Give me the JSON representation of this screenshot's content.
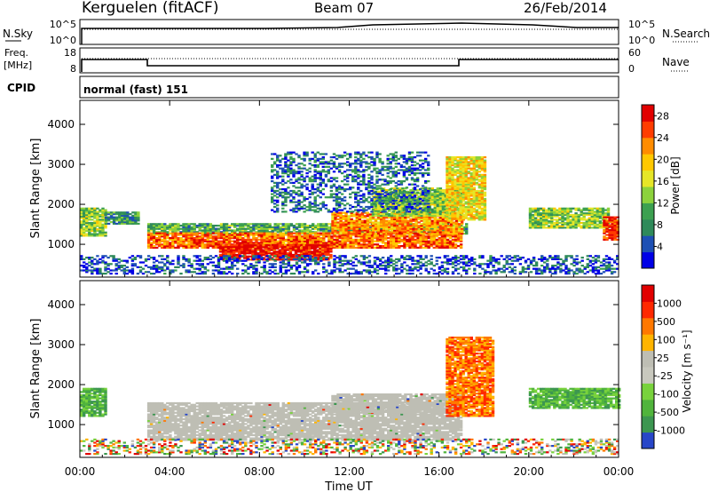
{
  "header": {
    "station": "Kerguelen (fitACF)",
    "beam": "Beam 07",
    "date": "26/Feb/2014"
  },
  "noise_panel": {
    "left_label": "N.Sky",
    "right_label": "N.Search",
    "left_ticks": [
      "10^5",
      "10^0"
    ],
    "right_ticks": [
      "10^5",
      "10^0"
    ]
  },
  "freq_panel": {
    "left_label_1": "Freq.",
    "left_label_2": "[MHz]",
    "right_label": "Nave",
    "left_ticks": [
      "18",
      "8"
    ],
    "right_ticks": [
      "60",
      "0"
    ]
  },
  "cpid": {
    "label": "CPID",
    "value": "normal (fast) 151"
  },
  "colors": {
    "ground_scatter": "#bebeb4",
    "axis": "#000000"
  },
  "chart_data": [
    {
      "type": "heatmap",
      "title": "",
      "ylabel": "Slant Range [km]",
      "xlabel": "",
      "x_ticks": [
        "00:00",
        "04:00",
        "08:00",
        "12:00",
        "16:00",
        "20:00",
        "00:00"
      ],
      "y_ticks": [
        "1000",
        "2000",
        "3000",
        "4000"
      ],
      "xlim_hours": [
        0,
        24
      ],
      "ylim_km": [
        180,
        4600
      ],
      "colorbar": {
        "label": "Power [dB]",
        "ticks": [
          "4",
          "8",
          "12",
          "16",
          "20",
          "24",
          "28"
        ],
        "range": [
          0,
          30
        ],
        "colors": [
          "#0000e6",
          "#1e50b4",
          "#2f8a5a",
          "#3ca050",
          "#8cd23c",
          "#e6e628",
          "#ffc800",
          "#ff8c00",
          "#ff3c00",
          "#e10000"
        ]
      },
      "regions": [
        {
          "t0": 0.0,
          "t1": 1.1,
          "r0": 1200,
          "r1": 1900,
          "level": 0.45
        },
        {
          "t0": 1.1,
          "t1": 2.6,
          "r0": 1500,
          "r1": 1800,
          "level": 0.3
        },
        {
          "t0": 3.0,
          "t1": 17.2,
          "r0": 1250,
          "r1": 1500,
          "level": 0.35
        },
        {
          "t0": 3.0,
          "t1": 17.0,
          "r0": 900,
          "r1": 1300,
          "level": 0.8
        },
        {
          "t0": 6.2,
          "t1": 11.2,
          "r0": 600,
          "r1": 1000,
          "level": 0.95
        },
        {
          "t0": 11.2,
          "t1": 17.0,
          "r0": 1250,
          "r1": 1800,
          "level": 0.75
        },
        {
          "t0": 13.0,
          "t1": 17.0,
          "r0": 1700,
          "r1": 2400,
          "level": 0.45
        },
        {
          "t0": 16.3,
          "t1": 18.0,
          "r0": 1600,
          "r1": 3200,
          "level": 0.6
        },
        {
          "t0": 20.0,
          "t1": 23.5,
          "r0": 1400,
          "r1": 1900,
          "level": 0.45
        },
        {
          "t0": 23.3,
          "t1": 24.0,
          "r0": 1100,
          "r1": 1700,
          "level": 0.9
        },
        {
          "t0": 0.0,
          "t1": 24.0,
          "r0": 250,
          "r1": 700,
          "level": 0.15
        },
        {
          "t0": 8.5,
          "t1": 15.5,
          "r0": 1800,
          "r1": 3300,
          "level": 0.2
        }
      ]
    },
    {
      "type": "heatmap",
      "title": "",
      "ylabel": "Slant Range [km]",
      "xlabel": "Time UT",
      "x_ticks": [
        "00:00",
        "04:00",
        "08:00",
        "12:00",
        "16:00",
        "20:00",
        "00:00"
      ],
      "y_ticks": [
        "1000",
        "2000",
        "3000",
        "4000"
      ],
      "xlim_hours": [
        0,
        24
      ],
      "ylim_km": [
        180,
        4600
      ],
      "colorbar": {
        "label": "Velocity [m s⁻¹]",
        "ticks": [
          "1000",
          "500",
          "100",
          "25",
          "-25",
          "-100",
          "-500",
          "-1000"
        ],
        "colors": [
          "#2846c8",
          "#3c9650",
          "#50b43c",
          "#78d23c",
          "#c8c8be",
          "#bebeb4",
          "#ffb400",
          "#ff7800",
          "#ff2800",
          "#e10000"
        ]
      },
      "regions": [
        {
          "t0": 0.0,
          "t1": 1.1,
          "r0": 1200,
          "r1": 1900,
          "kind": "green"
        },
        {
          "t0": 3.0,
          "t1": 17.0,
          "r0": 600,
          "r1": 1550,
          "kind": "grey"
        },
        {
          "t0": 11.2,
          "t1": 17.0,
          "r0": 1300,
          "r1": 1750,
          "kind": "grey"
        },
        {
          "t0": 16.3,
          "t1": 18.4,
          "r0": 1200,
          "r1": 3200,
          "kind": "orange"
        },
        {
          "t0": 20.0,
          "t1": 24.0,
          "r0": 1400,
          "r1": 1900,
          "kind": "green"
        },
        {
          "t0": 0.0,
          "t1": 24.0,
          "r0": 250,
          "r1": 650,
          "kind": "mixed"
        }
      ]
    }
  ]
}
